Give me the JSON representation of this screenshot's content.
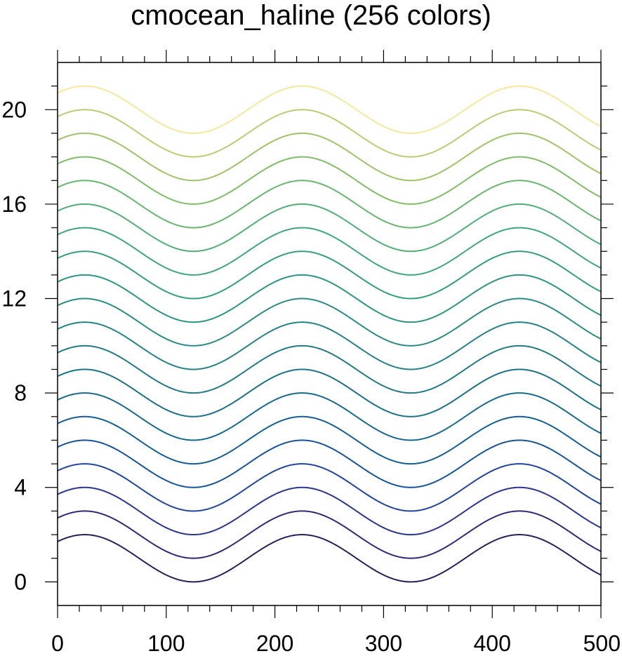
{
  "chart_data": {
    "type": "line",
    "title": "cmocean_haline (256 colors)",
    "xlabel": "",
    "ylabel": "",
    "xlim": [
      0,
      500
    ],
    "ylim": [
      -1,
      22
    ],
    "x_ticks": [
      "0",
      "100",
      "200",
      "300",
      "400",
      "500"
    ],
    "y_ticks": [
      "0",
      "4",
      "8",
      "12",
      "16",
      "20"
    ],
    "grid": false,
    "curve": {
      "function": "offset + sin(2*pi*(x + 25)/200)",
      "period": 200,
      "amplitude": 1,
      "x_start": 0,
      "x_end": 500
    },
    "series": [
      {
        "offset": 1,
        "color": "#2a1d5c"
      },
      {
        "offset": 2,
        "color": "#2c2a78"
      },
      {
        "offset": 3,
        "color": "#293593"
      },
      {
        "offset": 4,
        "color": "#1f45a0"
      },
      {
        "offset": 5,
        "color": "#15539d"
      },
      {
        "offset": 6,
        "color": "#135e95"
      },
      {
        "offset": 7,
        "color": "#16698f"
      },
      {
        "offset": 8,
        "color": "#1b7189"
      },
      {
        "offset": 9,
        "color": "#217a86"
      },
      {
        "offset": 10,
        "color": "#258284"
      },
      {
        "offset": 11,
        "color": "#298b84"
      },
      {
        "offset": 12,
        "color": "#2c9483"
      },
      {
        "offset": 13,
        "color": "#349d80"
      },
      {
        "offset": 14,
        "color": "#3fa67b"
      },
      {
        "offset": 15,
        "color": "#51ae74"
      },
      {
        "offset": 16,
        "color": "#66b66d"
      },
      {
        "offset": 17,
        "color": "#80bd66"
      },
      {
        "offset": 18,
        "color": "#9dc466"
      },
      {
        "offset": 19,
        "color": "#bccb72"
      },
      {
        "offset": 20,
        "color": "#f5e89a"
      }
    ]
  }
}
